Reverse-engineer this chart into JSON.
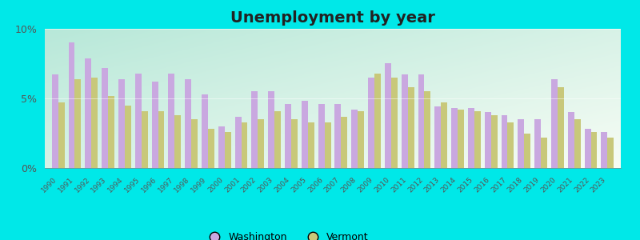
{
  "title": "Unemployment by year",
  "years": [
    1990,
    1991,
    1992,
    1993,
    1994,
    1995,
    1996,
    1997,
    1998,
    1999,
    2000,
    2001,
    2002,
    2003,
    2004,
    2005,
    2006,
    2007,
    2008,
    2009,
    2010,
    2011,
    2012,
    2013,
    2014,
    2015,
    2016,
    2017,
    2018,
    2019,
    2020,
    2021,
    2022,
    2023
  ],
  "washington": [
    6.7,
    9.0,
    7.9,
    7.2,
    6.4,
    6.8,
    6.2,
    6.8,
    6.4,
    5.3,
    3.0,
    3.7,
    5.5,
    5.5,
    4.6,
    4.8,
    4.6,
    4.6,
    4.2,
    6.5,
    7.5,
    6.7,
    6.7,
    4.4,
    4.3,
    4.3,
    4.0,
    3.8,
    3.5,
    3.5,
    6.4,
    4.0,
    2.8,
    2.6
  ],
  "vermont": [
    4.7,
    6.4,
    6.5,
    5.2,
    4.5,
    4.1,
    4.1,
    3.8,
    3.5,
    2.8,
    2.6,
    3.3,
    3.5,
    4.1,
    3.5,
    3.3,
    3.3,
    3.7,
    4.1,
    6.8,
    6.5,
    5.8,
    5.5,
    4.7,
    4.2,
    4.1,
    3.8,
    3.3,
    2.5,
    2.2,
    5.8,
    3.5,
    2.6,
    2.2
  ],
  "washington_color": "#c9a8e0",
  "vermont_color": "#c8c87a",
  "outer_background": "#00e8e8",
  "ylim": [
    0,
    10
  ],
  "yticks": [
    0,
    5,
    10
  ],
  "ytick_labels": [
    "0%",
    "5%",
    "10%"
  ],
  "bar_width": 0.38,
  "title_fontsize": 14,
  "gradient_top_left": "#b8e8d8",
  "gradient_bottom_right": "#f0f8ee"
}
